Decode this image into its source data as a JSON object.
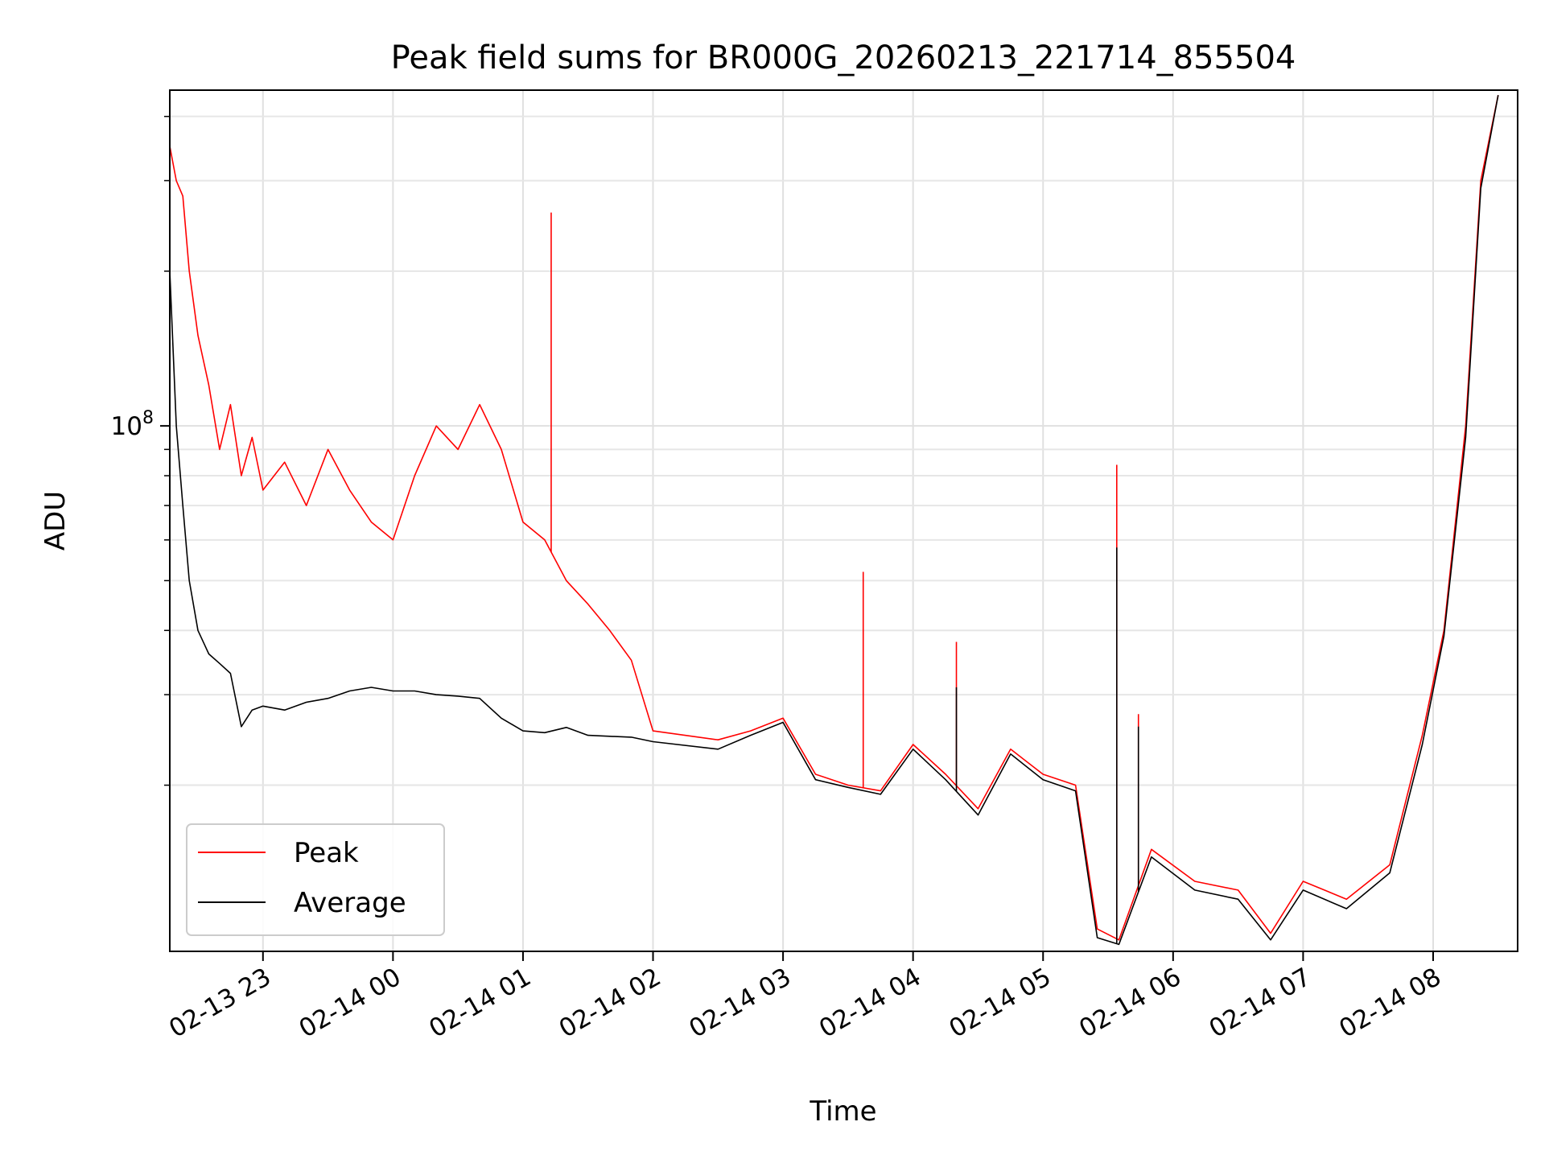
{
  "chart_data": {
    "type": "line",
    "title": "Peak field sums for BR000G_20260213_221714_855504",
    "xlabel": "Time",
    "ylabel": "ADU",
    "y_scale": "log",
    "xlim": [
      "2026-02-13 22:17",
      "2026-02-14 08:39"
    ],
    "ylim": [
      9500000,
      450000000
    ],
    "grid": true,
    "legend_position": "lower-left",
    "x_ticks": [
      "02-13 23",
      "02-14 00",
      "02-14 01",
      "02-14 02",
      "02-14 03",
      "02-14 04",
      "02-14 05",
      "02-14 06",
      "02-14 07",
      "02-14 08"
    ],
    "x_tick_times": [
      "2026-02-13 23:00",
      "2026-02-14 00:00",
      "2026-02-14 01:00",
      "2026-02-14 02:00",
      "2026-02-14 03:00",
      "2026-02-14 04:00",
      "2026-02-14 05:00",
      "2026-02-14 06:00",
      "2026-02-14 07:00",
      "2026-02-14 08:00"
    ],
    "y_ticks": [
      {
        "value": 100000000,
        "base": "10",
        "exp": "8"
      }
    ],
    "y_minor_ticks": [
      20000000,
      30000000,
      40000000,
      50000000,
      60000000,
      70000000,
      80000000,
      90000000,
      200000000,
      300000000,
      400000000
    ],
    "series": [
      {
        "name": "Peak",
        "color": "#ff0000",
        "points": [
          [
            "2026-02-13 22:17",
            350000000
          ],
          [
            "2026-02-13 22:20",
            300000000
          ],
          [
            "2026-02-13 22:23",
            280000000
          ],
          [
            "2026-02-13 22:26",
            200000000
          ],
          [
            "2026-02-13 22:30",
            150000000
          ],
          [
            "2026-02-13 22:35",
            120000000
          ],
          [
            "2026-02-13 22:40",
            90000000
          ],
          [
            "2026-02-13 22:45",
            110000000
          ],
          [
            "2026-02-13 22:50",
            80000000
          ],
          [
            "2026-02-13 22:55",
            95000000
          ],
          [
            "2026-02-13 23:00",
            75000000
          ],
          [
            "2026-02-13 23:10",
            85000000
          ],
          [
            "2026-02-13 23:20",
            70000000
          ],
          [
            "2026-02-13 23:30",
            90000000
          ],
          [
            "2026-02-13 23:40",
            75000000
          ],
          [
            "2026-02-13 23:50",
            65000000
          ],
          [
            "2026-02-14 00:00",
            60000000
          ],
          [
            "2026-02-14 00:10",
            80000000
          ],
          [
            "2026-02-14 00:20",
            100000000
          ],
          [
            "2026-02-14 00:30",
            90000000
          ],
          [
            "2026-02-14 00:40",
            110000000
          ],
          [
            "2026-02-14 00:50",
            90000000
          ],
          [
            "2026-02-14 01:00",
            65000000
          ],
          [
            "2026-02-14 01:10",
            60000000
          ],
          [
            "2026-02-14 01:20",
            50000000
          ],
          [
            "2026-02-14 01:30",
            45000000
          ],
          [
            "2026-02-14 01:40",
            40000000
          ],
          [
            "2026-02-14 01:50",
            35000000
          ],
          [
            "2026-02-14 02:00",
            25500000
          ],
          [
            "2026-02-14 02:30",
            24500000
          ],
          [
            "2026-02-14 02:45",
            25500000
          ],
          [
            "2026-02-14 03:00",
            27000000
          ],
          [
            "2026-02-14 03:15",
            21000000
          ],
          [
            "2026-02-14 03:30",
            20000000
          ],
          [
            "2026-02-14 03:45",
            19500000
          ],
          [
            "2026-02-14 04:00",
            24000000
          ],
          [
            "2026-02-14 04:15",
            21000000
          ],
          [
            "2026-02-14 04:30",
            18000000
          ],
          [
            "2026-02-14 04:45",
            23500000
          ],
          [
            "2026-02-14 05:00",
            21000000
          ],
          [
            "2026-02-14 05:15",
            20000000
          ],
          [
            "2026-02-14 05:25",
            10500000
          ],
          [
            "2026-02-14 05:35",
            10000000
          ],
          [
            "2026-02-14 05:50",
            15000000
          ],
          [
            "2026-02-14 06:10",
            13000000
          ],
          [
            "2026-02-14 06:30",
            12500000
          ],
          [
            "2026-02-14 06:45",
            10300000
          ],
          [
            "2026-02-14 07:00",
            13000000
          ],
          [
            "2026-02-14 07:20",
            12000000
          ],
          [
            "2026-02-14 07:40",
            14000000
          ],
          [
            "2026-02-14 07:55",
            25000000
          ],
          [
            "2026-02-14 08:05",
            40000000
          ],
          [
            "2026-02-14 08:15",
            100000000
          ],
          [
            "2026-02-14 08:22",
            300000000
          ],
          [
            "2026-02-14 08:30",
            440000000
          ]
        ]
      },
      {
        "name": "Average",
        "color": "#000000",
        "points": [
          [
            "2026-02-13 22:17",
            200000000
          ],
          [
            "2026-02-13 22:20",
            100000000
          ],
          [
            "2026-02-13 22:23",
            70000000
          ],
          [
            "2026-02-13 22:26",
            50000000
          ],
          [
            "2026-02-13 22:30",
            40000000
          ],
          [
            "2026-02-13 22:35",
            36000000
          ],
          [
            "2026-02-13 22:40",
            34500000
          ],
          [
            "2026-02-13 22:45",
            33000000
          ],
          [
            "2026-02-13 22:50",
            26000000
          ],
          [
            "2026-02-13 22:55",
            28000000
          ],
          [
            "2026-02-13 23:00",
            28500000
          ],
          [
            "2026-02-13 23:10",
            28000000
          ],
          [
            "2026-02-13 23:20",
            29000000
          ],
          [
            "2026-02-13 23:30",
            29500000
          ],
          [
            "2026-02-13 23:40",
            30500000
          ],
          [
            "2026-02-13 23:50",
            31000000
          ],
          [
            "2026-02-14 00:00",
            30500000
          ],
          [
            "2026-02-14 00:10",
            30500000
          ],
          [
            "2026-02-14 00:20",
            30000000
          ],
          [
            "2026-02-14 00:30",
            29800000
          ],
          [
            "2026-02-14 00:40",
            29500000
          ],
          [
            "2026-02-14 00:50",
            27000000
          ],
          [
            "2026-02-14 01:00",
            25500000
          ],
          [
            "2026-02-14 01:10",
            25300000
          ],
          [
            "2026-02-14 01:20",
            25900000
          ],
          [
            "2026-02-14 01:30",
            25000000
          ],
          [
            "2026-02-14 01:40",
            24900000
          ],
          [
            "2026-02-14 01:50",
            24800000
          ],
          [
            "2026-02-14 02:00",
            24300000
          ],
          [
            "2026-02-14 02:30",
            23500000
          ],
          [
            "2026-02-14 02:45",
            25000000
          ],
          [
            "2026-02-14 03:00",
            26500000
          ],
          [
            "2026-02-14 03:15",
            20500000
          ],
          [
            "2026-02-14 03:30",
            19800000
          ],
          [
            "2026-02-14 03:45",
            19200000
          ],
          [
            "2026-02-14 04:00",
            23500000
          ],
          [
            "2026-02-14 04:15",
            20500000
          ],
          [
            "2026-02-14 04:30",
            17500000
          ],
          [
            "2026-02-14 04:45",
            23000000
          ],
          [
            "2026-02-14 05:00",
            20500000
          ],
          [
            "2026-02-14 05:15",
            19500000
          ],
          [
            "2026-02-14 05:25",
            10100000
          ],
          [
            "2026-02-14 05:35",
            9800000
          ],
          [
            "2026-02-14 05:50",
            14500000
          ],
          [
            "2026-02-14 06:10",
            12500000
          ],
          [
            "2026-02-14 06:30",
            12000000
          ],
          [
            "2026-02-14 06:45",
            10000000
          ],
          [
            "2026-02-14 07:00",
            12500000
          ],
          [
            "2026-02-14 07:20",
            11500000
          ],
          [
            "2026-02-14 07:40",
            13500000
          ],
          [
            "2026-02-14 07:55",
            24000000
          ],
          [
            "2026-02-14 08:05",
            39000000
          ],
          [
            "2026-02-14 08:15",
            95000000
          ],
          [
            "2026-02-14 08:22",
            290000000
          ],
          [
            "2026-02-14 08:30",
            440000000
          ]
        ]
      }
    ],
    "spikes": [
      {
        "time": "2026-02-14 01:13",
        "series": "Peak",
        "value": 260000000
      },
      {
        "time": "2026-02-14 03:37",
        "series": "Peak",
        "value": 52000000
      },
      {
        "time": "2026-02-14 05:34",
        "series": "Peak",
        "value": 84000000
      },
      {
        "time": "2026-02-14 05:34",
        "series": "Average",
        "value": 58000000
      },
      {
        "time": "2026-02-14 04:20",
        "series": "Peak",
        "value": 38000000
      },
      {
        "time": "2026-02-14 04:20",
        "series": "Average",
        "value": 31000000
      },
      {
        "time": "2026-02-14 05:44",
        "series": "Peak",
        "value": 27500000
      },
      {
        "time": "2026-02-14 05:44",
        "series": "Average",
        "value": 26000000
      }
    ]
  }
}
